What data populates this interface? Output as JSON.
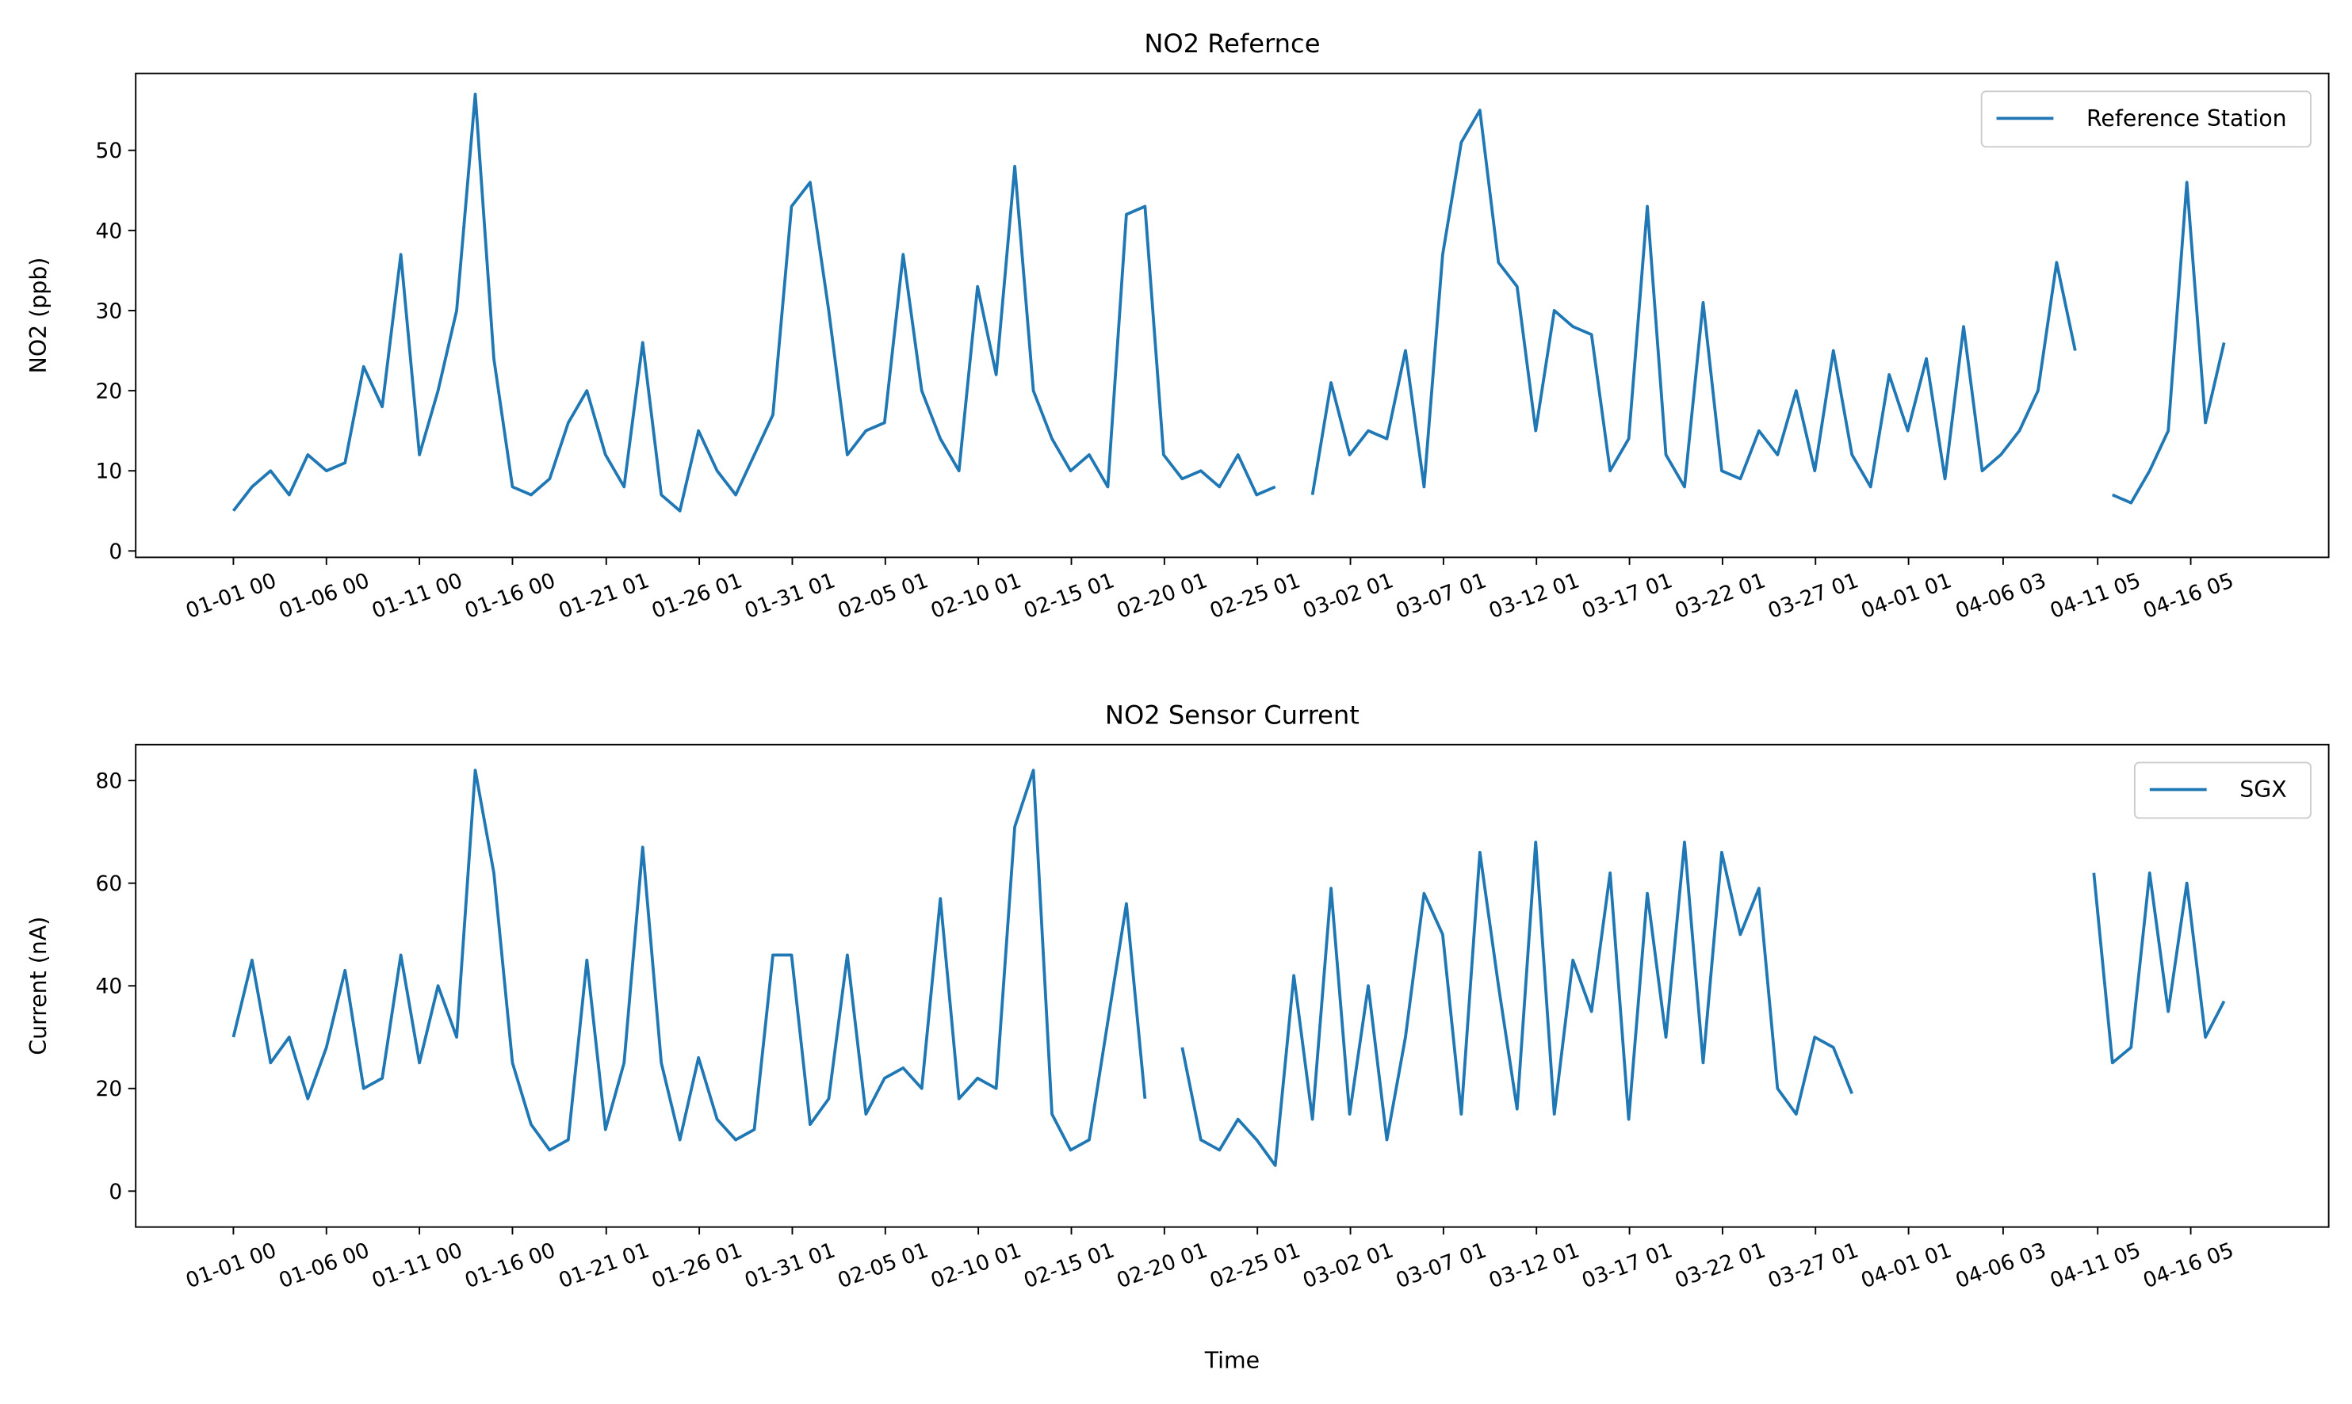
{
  "chart_data": [
    {
      "type": "line",
      "title": "NO2 Refernce",
      "ylabel": "NO2 (ppb)",
      "x": [
        "01-01 00",
        "01-02 00",
        "01-03 00",
        "01-04 00",
        "01-05 00",
        "01-06 00",
        "01-07 00",
        "01-08 00",
        "01-09 00",
        "01-10 00",
        "01-11 00",
        "01-12 00",
        "01-13 00",
        "01-14 00",
        "01-15 00",
        "01-16 00",
        "01-17 00",
        "01-18 00",
        "01-19 00",
        "01-20 00",
        "01-21 00",
        "01-22 00",
        "01-23 00",
        "01-24 00",
        "01-25 00",
        "01-26 00",
        "01-27 00",
        "01-28 00",
        "01-29 00",
        "01-30 00",
        "01-31 00",
        "02-01 00",
        "02-02 00",
        "02-03 00",
        "02-04 00",
        "02-05 00",
        "02-06 00",
        "02-07 00",
        "02-08 00",
        "02-09 00",
        "02-10 00",
        "02-11 00",
        "02-12 00",
        "02-13 00",
        "02-14 00",
        "02-15 00",
        "02-16 00",
        "02-17 00",
        "02-18 00",
        "02-19 00",
        "02-20 00",
        "02-21 00",
        "02-22 00",
        "02-23 00",
        "02-24 00",
        "02-25 00",
        "02-26 00",
        "02-27 00",
        "02-28 00",
        "03-01 00",
        "03-02 00",
        "03-03 00",
        "03-04 00",
        "03-05 00",
        "03-06 00",
        "03-07 00",
        "03-08 00",
        "03-09 00",
        "03-10 00",
        "03-11 00",
        "03-12 00",
        "03-13 00",
        "03-14 00",
        "03-15 00",
        "03-16 00",
        "03-17 00",
        "03-18 00",
        "03-19 00",
        "03-20 00",
        "03-21 00",
        "03-22 00",
        "03-23 00",
        "03-24 00",
        "03-25 00",
        "03-26 00",
        "03-27 00",
        "03-28 00",
        "03-29 00",
        "03-30 00",
        "03-31 00",
        "04-01 00",
        "04-02 00",
        "04-03 00",
        "04-04 00",
        "04-05 00",
        "04-06 00",
        "04-07 00",
        "04-08 00",
        "04-09 00",
        "04-10 00",
        "04-11 00",
        "04-12 00",
        "04-13 00",
        "04-14 00",
        "04-15 00",
        "04-16 00",
        "04-17 00",
        "04-18 00"
      ],
      "xlim": [
        "12-26 18",
        "04-23 15"
      ],
      "xticks": [
        "01-01 00",
        "01-06 00",
        "01-11 00",
        "01-16 00",
        "01-21 01",
        "01-26 01",
        "01-31 01",
        "02-05 01",
        "02-10 01",
        "02-15 01",
        "02-20 01",
        "02-25 01",
        "03-02 01",
        "03-07 01",
        "03-12 01",
        "03-17 01",
        "03-22 01",
        "03-27 01",
        "04-01 01",
        "04-06 03",
        "04-11 05",
        "04-16 05"
      ],
      "ylim": [
        -0.8,
        59.6
      ],
      "yticks": [
        0,
        10,
        20,
        30,
        40,
        50
      ],
      "legend": "upper right",
      "series": [
        {
          "name": "Reference Station",
          "color": "#1f77b4",
          "values": [
            5,
            8,
            10,
            7,
            12,
            10,
            11,
            23,
            18,
            37,
            12,
            20,
            30,
            57,
            24,
            8,
            7,
            9,
            16,
            20,
            12,
            8,
            26,
            7,
            5,
            15,
            10,
            7,
            12,
            17,
            43,
            46,
            30,
            12,
            15,
            16,
            37,
            20,
            14,
            10,
            33,
            22,
            48,
            20,
            14,
            10,
            12,
            8,
            42,
            43,
            12,
            9,
            10,
            8,
            12,
            7,
            8,
            null,
            7,
            21,
            12,
            15,
            14,
            25,
            8,
            37,
            51,
            55,
            36,
            33,
            15,
            30,
            28,
            27,
            10,
            14,
            43,
            12,
            8,
            31,
            10,
            9,
            15,
            12,
            20,
            10,
            25,
            12,
            8,
            22,
            15,
            24,
            9,
            28,
            10,
            12,
            15,
            20,
            36,
            25,
            null,
            7,
            6,
            10,
            15,
            46,
            16,
            26
          ]
        }
      ]
    },
    {
      "type": "line",
      "title": "NO2 Sensor Current",
      "ylabel": "Current (nA)",
      "xlabel": "Time",
      "x": [
        "01-01 00",
        "01-02 00",
        "01-03 00",
        "01-04 00",
        "01-05 00",
        "01-06 00",
        "01-07 00",
        "01-08 00",
        "01-09 00",
        "01-10 00",
        "01-11 00",
        "01-12 00",
        "01-13 00",
        "01-14 00",
        "01-15 00",
        "01-16 00",
        "01-17 00",
        "01-18 00",
        "01-19 00",
        "01-20 00",
        "01-21 00",
        "01-22 00",
        "01-23 00",
        "01-24 00",
        "01-25 00",
        "01-26 00",
        "01-27 00",
        "01-28 00",
        "01-29 00",
        "01-30 00",
        "01-31 00",
        "02-01 00",
        "02-02 00",
        "02-03 00",
        "02-04 00",
        "02-05 00",
        "02-06 00",
        "02-07 00",
        "02-08 00",
        "02-09 00",
        "02-10 00",
        "02-11 00",
        "02-12 00",
        "02-13 00",
        "02-14 00",
        "02-15 00",
        "02-16 00",
        "02-17 00",
        "02-18 00",
        "02-19 00",
        "02-20 00",
        "02-21 00",
        "02-22 00",
        "02-23 00",
        "02-24 00",
        "02-25 00",
        "02-26 00",
        "02-27 00",
        "02-28 00",
        "03-01 00",
        "03-02 00",
        "03-03 00",
        "03-04 00",
        "03-05 00",
        "03-06 00",
        "03-07 00",
        "03-08 00",
        "03-09 00",
        "03-10 00",
        "03-11 00",
        "03-12 00",
        "03-13 00",
        "03-14 00",
        "03-15 00",
        "03-16 00",
        "03-17 00",
        "03-18 00",
        "03-19 00",
        "03-20 00",
        "03-21 00",
        "03-22 00",
        "03-23 00",
        "03-24 00",
        "03-25 00",
        "03-26 00",
        "03-27 00",
        "03-28 00",
        "03-29 00",
        "03-30 00",
        "03-31 00",
        "04-01 00",
        "04-02 00",
        "04-03 00",
        "04-04 00",
        "04-05 00",
        "04-06 00",
        "04-07 00",
        "04-08 00",
        "04-09 00",
        "04-10 00",
        "04-11 00",
        "04-12 00",
        "04-13 00",
        "04-14 00",
        "04-15 00",
        "04-16 00",
        "04-17 00",
        "04-18 00"
      ],
      "xlim": [
        "12-26 18",
        "04-23 15"
      ],
      "xticks": [
        "01-01 00",
        "01-06 00",
        "01-11 00",
        "01-16 00",
        "01-21 01",
        "01-26 01",
        "01-31 01",
        "02-05 01",
        "02-10 01",
        "02-15 01",
        "02-20 01",
        "02-25 01",
        "03-02 01",
        "03-07 01",
        "03-12 01",
        "03-17 01",
        "03-22 01",
        "03-27 01",
        "04-01 01",
        "04-06 03",
        "04-11 05",
        "04-16 05"
      ],
      "ylim": [
        -7,
        87
      ],
      "yticks": [
        0,
        20,
        40,
        60,
        80
      ],
      "legend": "upper right",
      "series": [
        {
          "name": "SGX",
          "color": "#1f77b4",
          "values": [
            30,
            45,
            25,
            30,
            18,
            28,
            43,
            20,
            22,
            46,
            25,
            40,
            30,
            82,
            62,
            25,
            13,
            8,
            10,
            45,
            12,
            25,
            67,
            25,
            10,
            26,
            14,
            10,
            12,
            46,
            46,
            13,
            18,
            46,
            15,
            22,
            24,
            20,
            57,
            18,
            22,
            20,
            71,
            82,
            15,
            8,
            10,
            33,
            56,
            18,
            null,
            28,
            10,
            8,
            14,
            10,
            5,
            42,
            14,
            59,
            15,
            40,
            10,
            30,
            58,
            50,
            15,
            66,
            40,
            16,
            68,
            15,
            45,
            35,
            62,
            14,
            58,
            30,
            68,
            25,
            66,
            50,
            59,
            20,
            15,
            30,
            28,
            19,
            null,
            null,
            null,
            null,
            null,
            null,
            null,
            null,
            null,
            null,
            null,
            null,
            62,
            25,
            28,
            62,
            35,
            60,
            30,
            37
          ]
        }
      ]
    }
  ]
}
